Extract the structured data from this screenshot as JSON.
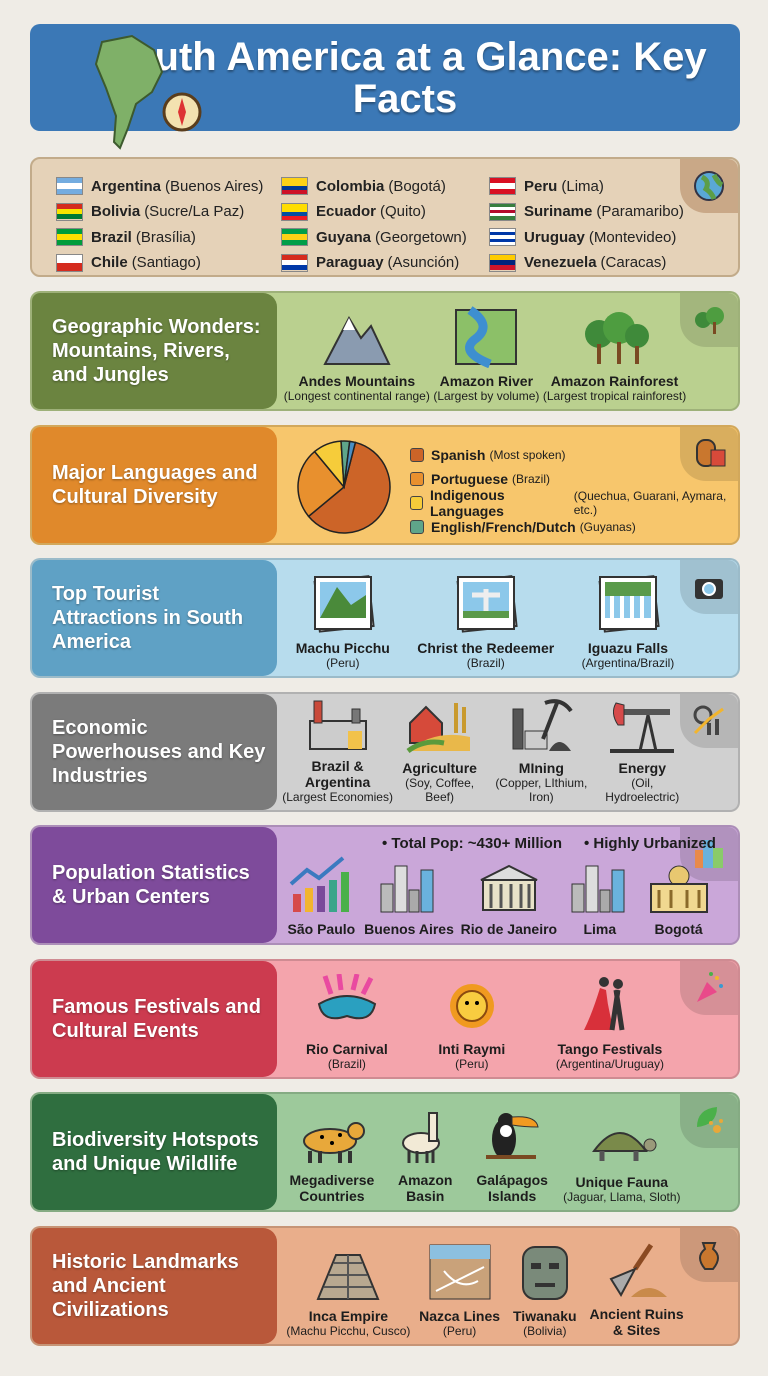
{
  "header": {
    "title": "South America at a Glance: Key Facts",
    "color": "#3b78b6"
  },
  "countries": [
    {
      "name": "Argentina",
      "capital": "(Buenos Aires)",
      "flag": [
        "#74acdf",
        "#ffffff",
        "#74acdf"
      ]
    },
    {
      "name": "Bolivia",
      "capital": "(Sucre/La Paz)",
      "flag": [
        "#d52b1e",
        "#f9e300",
        "#007934"
      ]
    },
    {
      "name": "Brazil",
      "capital": "(Brasília)",
      "flag": [
        "#009c3b",
        "#ffdf00",
        "#009c3b"
      ]
    },
    {
      "name": "Chile",
      "capital": "(Santiago)",
      "flag": [
        "#ffffff",
        "#d52b1e"
      ]
    },
    {
      "name": "Colombia",
      "capital": "(Bogotá)",
      "flag": [
        "#fcd116",
        "#fcd116",
        "#003893",
        "#ce1126"
      ]
    },
    {
      "name": "Ecuador",
      "capital": "(Quito)",
      "flag": [
        "#ffdd00",
        "#ffdd00",
        "#034ea2",
        "#ed1c24"
      ]
    },
    {
      "name": "Guyana",
      "capital": "(Georgetown)",
      "flag": [
        "#009e49",
        "#fcd116",
        "#009e49"
      ]
    },
    {
      "name": "Paraguay",
      "capital": "(Asunción)",
      "flag": [
        "#d52b1e",
        "#ffffff",
        "#0038a8"
      ]
    },
    {
      "name": "Peru",
      "capital": "(Lima)",
      "flag": [
        "#d91023",
        "#ffffff",
        "#d91023"
      ]
    },
    {
      "name": "Suriname",
      "capital": "(Paramaribo)",
      "flag": [
        "#377e3f",
        "#ffffff",
        "#b40a2d",
        "#ffffff",
        "#377e3f"
      ]
    },
    {
      "name": "Uruguay",
      "capital": "(Montevideo)",
      "flag": [
        "#ffffff",
        "#0038a8",
        "#ffffff",
        "#0038a8",
        "#ffffff"
      ]
    },
    {
      "name": "Venezuela",
      "capital": "(Caracas)",
      "flag": [
        "#ffcc00",
        "#00247d",
        "#cf142b"
      ]
    }
  ],
  "sections": [
    {
      "title": "Geographic Wonders: Mountains, Rivers, and Jungles",
      "dark": "#6b8440",
      "light": "#bad08f",
      "corner_icon": "trees-icon",
      "items": [
        {
          "label": "Andes Mountains",
          "sub": "(Longest continental range)",
          "icon": "mountain-icon"
        },
        {
          "label": "Amazon River",
          "sub": "(Largest by volume)",
          "icon": "river-icon"
        },
        {
          "label": "Amazon Rainforest",
          "sub": "(Largest tropical rainforest)",
          "icon": "rainforest-icon"
        }
      ]
    },
    {
      "title": "Major Languages and Cultural Diversity",
      "dark": "#e0892b",
      "light": "#f7c66c",
      "corner_icon": "mask-icon",
      "items": []
    },
    {
      "title": "Top Tourist Attractions in South America",
      "dark": "#5fa1c5",
      "light": "#b7dced",
      "corner_icon": "camera-icon",
      "items": [
        {
          "label": "Machu Picchu",
          "sub": "(Peru)",
          "icon": "machu-picchu-photo-icon"
        },
        {
          "label": "Christ the Redeemer",
          "sub": "(Brazil)",
          "icon": "christ-redeemer-photo-icon"
        },
        {
          "label": "Iguazu Falls",
          "sub": "(Argentina/Brazil)",
          "icon": "waterfall-photo-icon"
        }
      ]
    },
    {
      "title": "Economic Powerhouses and Key Industries",
      "dark": "#7b7b7b",
      "light": "#d0d0d0",
      "corner_icon": "growth-chart-icon",
      "items": [
        {
          "label": "Brazil & Argentina",
          "sub": "(Largest Economies)",
          "icon": "factory-icon"
        },
        {
          "label": "Agriculture",
          "sub": "(Soy, Coffee, Beef)",
          "icon": "barn-icon"
        },
        {
          "label": "MIning",
          "sub": "(Copper, LIthium, Iron)",
          "icon": "pickaxe-icon"
        },
        {
          "label": "Energy",
          "sub": "(Oil, Hydroelectric)",
          "icon": "oil-pump-icon"
        }
      ]
    },
    {
      "title": "Population Statistics & Urban Centers",
      "dark": "#7e4b9b",
      "light": "#caa7d9",
      "corner_icon": "city-icon",
      "stats": [
        "• Total Pop: ~430+ Million",
        "• Highly Urbanized"
      ],
      "items": [
        {
          "label": "São Paulo",
          "sub": "",
          "icon": "bar-chart-icon"
        },
        {
          "label": "Buenos Aires",
          "sub": "",
          "icon": "skyline-icon"
        },
        {
          "label": "Rio de Janeiro",
          "sub": "",
          "icon": "government-building-icon"
        },
        {
          "label": "Lima",
          "sub": "",
          "icon": "skyline-icon"
        },
        {
          "label": "Bogotá",
          "sub": "",
          "icon": "capitol-icon"
        }
      ]
    },
    {
      "title": "Famous Festivals and Cultural Events",
      "dark": "#cc3b4f",
      "light": "#f4a4ac",
      "corner_icon": "confetti-icon",
      "items": [
        {
          "label": "Rio Carnival",
          "sub": "(Brazil)",
          "icon": "carnival-mask-icon"
        },
        {
          "label": "Inti Raymi",
          "sub": "(Peru)",
          "icon": "sun-icon"
        },
        {
          "label": "Tango Festivals",
          "sub": "(Argentina/Uruguay)",
          "icon": "tango-dancers-icon"
        }
      ]
    },
    {
      "title": "Biodiversity Hotspots and Unique Wildlife",
      "dark": "#2f6e3f",
      "light": "#9dc99b",
      "corner_icon": "leaf-paw-icon",
      "items": [
        {
          "label": "Megadiverse",
          "sub": "Countries",
          "icon": "jaguar-icon",
          "subbold": true
        },
        {
          "label": "Amazon",
          "sub": "Basin",
          "icon": "llama-icon",
          "subbold": true
        },
        {
          "label": "Galápagos",
          "sub": "Islands",
          "icon": "toucan-icon",
          "subbold": true
        },
        {
          "label": "Unique Fauna",
          "sub": "(Jaguar, Llama, Sloth)",
          "icon": "tortoise-icon"
        }
      ]
    },
    {
      "title": "Historic Landmarks and Ancient Civilizations",
      "dark": "#b9583a",
      "light": "#e9ae8b",
      "corner_icon": "pottery-icon",
      "items": [
        {
          "label": "Inca Empire",
          "sub": "(Machu Picchu, Cusco)",
          "icon": "pyramid-icon"
        },
        {
          "label": "Nazca Lines",
          "sub": "(Peru)",
          "icon": "nazca-icon"
        },
        {
          "label": "Tiwanaku",
          "sub": "(Bolivia)",
          "icon": "stone-head-icon"
        },
        {
          "label": "Ancient Ruins",
          "sub": "& Sites",
          "icon": "trowel-icon",
          "subbold": true
        }
      ]
    }
  ],
  "chart_data": {
    "type": "pie",
    "categories": [
      "Spanish",
      "Portuguese",
      "Indigenous Languages",
      "English/French/Dutch",
      ""
    ],
    "notes": [
      "(Most spoken)",
      "(Brazil)",
      "(Quechua, Guarani, Aymara, etc.)",
      "(Guyanas)",
      ""
    ],
    "values": [
      60,
      25,
      10,
      3,
      2
    ],
    "colors": [
      "#cc6428",
      "#e8902e",
      "#f6cc3a",
      "#5fa58a",
      "#4a8fc4"
    ]
  }
}
